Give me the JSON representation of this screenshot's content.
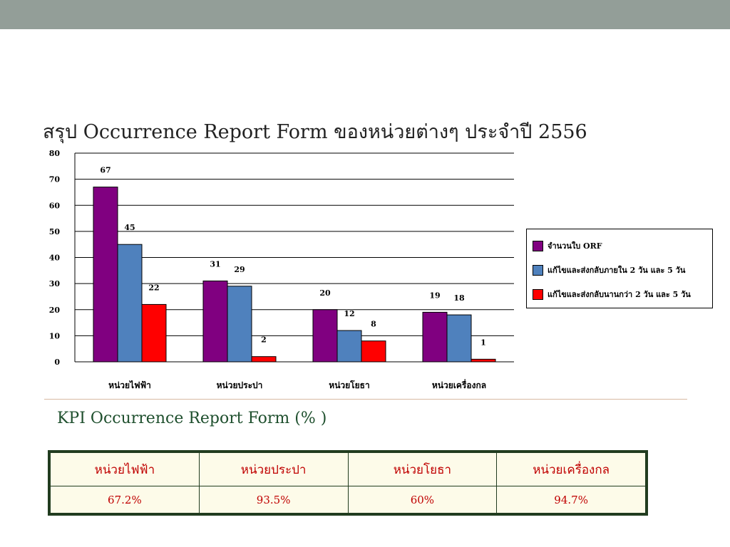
{
  "title": "สรุป Occurrence Report Form ของหน่วยต่างๆ ประจำปี 2556",
  "chart_data": {
    "type": "bar",
    "categories": [
      "หน่วยไฟฟ้า",
      "หน่วยประปา",
      "หน่วยโยธา",
      "หน่วยเครื่องกล"
    ],
    "series": [
      {
        "name": "จำนวนใบ ORF",
        "values": [
          67,
          31,
          20,
          19
        ],
        "color": "#800080"
      },
      {
        "name": "แก้ไขและส่งกลับภายใน 2 วัน และ 5 วัน",
        "values": [
          45,
          29,
          12,
          18
        ],
        "color": "#4f81bd"
      },
      {
        "name": "แก้ไขและส่งกลับนานกว่า 2 วัน และ 5 วัน",
        "values": [
          22,
          2,
          8,
          1
        ],
        "color": "#ff0000"
      }
    ],
    "ylim": [
      0,
      80
    ],
    "yticks": [
      0,
      10,
      20,
      30,
      40,
      50,
      60,
      70,
      80
    ],
    "grid": true,
    "legend_position": "right"
  },
  "kpi": {
    "title": "KPI Occurrence Report Form (% )",
    "headers": [
      "หน่วยไฟฟ้า",
      "หน่วยประปา",
      "หน่วยโยธา",
      "หน่วยเครื่องกล"
    ],
    "values": [
      "67.2%",
      "93.5%",
      "60%",
      "94.7%"
    ]
  }
}
